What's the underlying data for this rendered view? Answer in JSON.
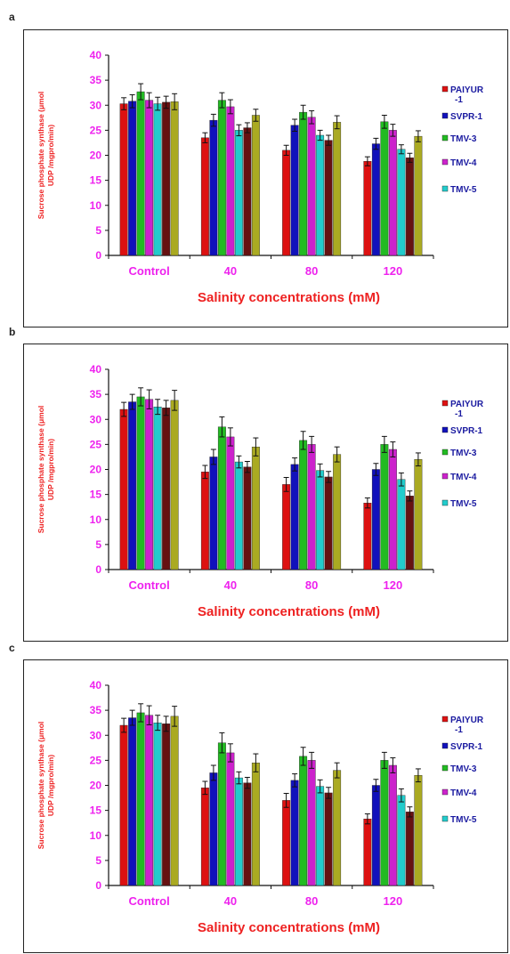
{
  "panels": [
    {
      "letter": "a"
    },
    {
      "letter": "b"
    },
    {
      "letter": "c"
    }
  ],
  "legend": [
    "PAIYUR -1",
    "SVPR-1",
    "TMV-3",
    "TMV-4",
    "TMV-5"
  ],
  "colors": {
    "bar_series": [
      "#dd1111",
      "#1111bb",
      "#22bb22",
      "#cc22cc",
      "#22cccc",
      "#661111",
      "#aaaa22"
    ],
    "axis": "#111111",
    "tick_label": "#ee22ee",
    "axis_title": "#ee2222",
    "legend_text": "#1a1aa0"
  },
  "chart_data": [
    {
      "type": "bar",
      "panel": "a",
      "categories": [
        "Control",
        "40",
        "80",
        "120"
      ],
      "ylabel": "Sucrose phosphate synthase (μmol UDP /mgpro/min)",
      "xlabel": "Salinity concentrations (mM)",
      "ylim": [
        0,
        40
      ],
      "yticks": [
        0,
        5,
        10,
        15,
        20,
        25,
        30,
        35,
        40
      ],
      "legend_position": "right",
      "series": [
        {
          "name": "PAIYUR -1",
          "values": [
            30.3,
            23.5,
            21.0,
            18.8
          ],
          "errors": [
            1.2,
            1.0,
            1.0,
            0.9
          ]
        },
        {
          "name": "SVPR-1",
          "values": [
            30.8,
            27.0,
            26.0,
            22.3
          ],
          "errors": [
            1.3,
            1.2,
            1.2,
            1.1
          ]
        },
        {
          "name": "TMV-3",
          "values": [
            32.7,
            31.0,
            28.6,
            26.7
          ],
          "errors": [
            1.6,
            1.5,
            1.4,
            1.3
          ]
        },
        {
          "name": "TMV-4",
          "values": [
            31.0,
            29.7,
            27.6,
            25.0
          ],
          "errors": [
            1.5,
            1.4,
            1.3,
            1.2
          ]
        },
        {
          "values": [
            30.3,
            25.0,
            24.0,
            21.2
          ],
          "errors": [
            1.3,
            1.1,
            1.0,
            0.9
          ]
        },
        {
          "values": [
            30.6,
            25.5,
            23.0,
            19.5
          ],
          "errors": [
            1.2,
            1.0,
            1.0,
            0.9
          ]
        },
        {
          "values": [
            30.7,
            28.0,
            26.6,
            23.8
          ],
          "errors": [
            1.6,
            1.2,
            1.3,
            1.1
          ]
        }
      ]
    },
    {
      "type": "bar",
      "panel": "b",
      "categories": [
        "Control",
        "40",
        "80",
        "120"
      ],
      "ylabel": "Sucrose phosphate synthase (μmol UDP /mgpro/min)",
      "xlabel": "Salinity concentrations (mM)",
      "ylim": [
        0,
        40
      ],
      "yticks": [
        0,
        5,
        10,
        15,
        20,
        25,
        30,
        35,
        40
      ],
      "legend_position": "right",
      "series": [
        {
          "name": "PAIYUR -1",
          "values": [
            32.0,
            19.5,
            17.0,
            13.3
          ],
          "errors": [
            1.4,
            1.3,
            1.4,
            1.0
          ]
        },
        {
          "name": "SVPR-1",
          "values": [
            33.5,
            22.5,
            21.0,
            20.0
          ],
          "errors": [
            1.5,
            1.5,
            1.3,
            1.2
          ]
        },
        {
          "name": "TMV-3",
          "values": [
            34.5,
            28.5,
            25.8,
            25.0
          ],
          "errors": [
            1.8,
            2.0,
            1.8,
            1.6
          ]
        },
        {
          "name": "TMV-4",
          "values": [
            34.0,
            26.5,
            25.0,
            24.0
          ],
          "errors": [
            1.9,
            1.8,
            1.6,
            1.5
          ]
        },
        {
          "values": [
            32.5,
            21.5,
            19.8,
            18.0
          ],
          "errors": [
            1.5,
            1.2,
            1.3,
            1.3
          ]
        },
        {
          "values": [
            32.3,
            20.5,
            18.5,
            14.7
          ],
          "errors": [
            1.5,
            1.1,
            1.1,
            1.0
          ]
        },
        {
          "values": [
            33.8,
            24.5,
            23.0,
            22.0
          ],
          "errors": [
            2.0,
            1.8,
            1.5,
            1.3
          ]
        }
      ]
    },
    {
      "type": "bar",
      "panel": "c",
      "categories": [
        "Control",
        "40",
        "80",
        "120"
      ],
      "ylabel": "Sucrose phosphate synthase (μmol UDP /mgpro/min)",
      "xlabel": "Salinity concentrations (mM)",
      "ylim": [
        0,
        40
      ],
      "yticks": [
        0,
        5,
        10,
        15,
        20,
        25,
        30,
        35,
        40
      ],
      "legend_position": "right",
      "series": [
        {
          "name": "PAIYUR -1",
          "values": [
            32.0,
            19.5,
            17.0,
            13.3
          ],
          "errors": [
            1.4,
            1.3,
            1.4,
            1.0
          ]
        },
        {
          "name": "SVPR-1",
          "values": [
            33.5,
            22.5,
            21.0,
            20.0
          ],
          "errors": [
            1.5,
            1.5,
            1.3,
            1.2
          ]
        },
        {
          "name": "TMV-3",
          "values": [
            34.5,
            28.5,
            25.8,
            25.0
          ],
          "errors": [
            1.8,
            2.0,
            1.8,
            1.6
          ]
        },
        {
          "name": "TMV-4",
          "values": [
            34.0,
            26.5,
            25.0,
            24.0
          ],
          "errors": [
            1.9,
            1.8,
            1.6,
            1.5
          ]
        },
        {
          "values": [
            32.5,
            21.5,
            19.8,
            18.0
          ],
          "errors": [
            1.5,
            1.2,
            1.3,
            1.3
          ]
        },
        {
          "values": [
            32.3,
            20.5,
            18.5,
            14.7
          ],
          "errors": [
            1.5,
            1.1,
            1.1,
            1.0
          ]
        },
        {
          "values": [
            33.8,
            24.5,
            23.0,
            22.0
          ],
          "errors": [
            2.0,
            1.8,
            1.5,
            1.3
          ]
        }
      ]
    }
  ]
}
